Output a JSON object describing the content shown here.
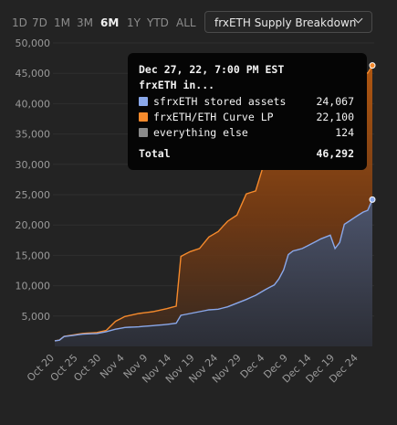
{
  "toolbar": {
    "ranges": [
      "1D",
      "7D",
      "1M",
      "3M",
      "6M",
      "1Y",
      "YTD",
      "ALL"
    ],
    "active_range": "6M",
    "dropdown_label": "frxETH Supply Breakdown"
  },
  "colors": {
    "background": "#232323",
    "sfrxeth": "#8aa8ea",
    "curve_lp": "#f58a2c",
    "everything_else": "#8a8a8a",
    "axis_text": "#9a9a9a",
    "grid": "#2f2f2f"
  },
  "tooltip": {
    "date": "Dec 27, 22, 7:00 PM EST",
    "subtitle": "frxETH in...",
    "rows": [
      {
        "name": "sfrxETH stored assets",
        "value": "24,067"
      },
      {
        "name": "frxETH/ETH Curve LP",
        "value": "22,100"
      },
      {
        "name": "everything else",
        "value": "124"
      }
    ],
    "total_label": "Total",
    "total_value": "46,292"
  },
  "chart_data": {
    "type": "area",
    "stacked": true,
    "ylim": [
      0,
      50000
    ],
    "y_ticks": [
      "5,000",
      "10,000",
      "15,000",
      "20,000",
      "25,000",
      "30,000",
      "35,000",
      "40,000",
      "45,000",
      "50,000"
    ],
    "x_ticks": [
      "Oct 20",
      "Oct 25",
      "Oct 30",
      "Nov 4",
      "Nov 9",
      "Nov 14",
      "Nov 19",
      "Nov 24",
      "Nov 29",
      "Dec 4",
      "Dec 9",
      "Dec 14",
      "Dec 19",
      "Dec 24"
    ],
    "x_start": "2022-10-20",
    "x_end": "2022-12-27",
    "series": [
      {
        "name": "sfrxETH stored assets",
        "points": [
          [
            "2022-10-20",
            800
          ],
          [
            "2022-10-21",
            900
          ],
          [
            "2022-10-22",
            1500
          ],
          [
            "2022-10-24",
            1700
          ],
          [
            "2022-10-26",
            1900
          ],
          [
            "2022-10-29",
            2000
          ],
          [
            "2022-10-31",
            2300
          ],
          [
            "2022-11-02",
            2700
          ],
          [
            "2022-11-04",
            3000
          ],
          [
            "2022-11-07",
            3100
          ],
          [
            "2022-11-10",
            3300
          ],
          [
            "2022-11-13",
            3500
          ],
          [
            "2022-11-15",
            3700
          ],
          [
            "2022-11-16",
            5000
          ],
          [
            "2022-11-18",
            5300
          ],
          [
            "2022-11-20",
            5600
          ],
          [
            "2022-11-22",
            5900
          ],
          [
            "2022-11-24",
            6000
          ],
          [
            "2022-11-26",
            6400
          ],
          [
            "2022-11-28",
            7000
          ],
          [
            "2022-11-30",
            7600
          ],
          [
            "2022-12-02",
            8300
          ],
          [
            "2022-12-04",
            9200
          ],
          [
            "2022-12-06",
            10000
          ],
          [
            "2022-12-07",
            11000
          ],
          [
            "2022-12-08",
            12500
          ],
          [
            "2022-12-09",
            15000
          ],
          [
            "2022-12-10",
            15600
          ],
          [
            "2022-12-12",
            16000
          ],
          [
            "2022-12-14",
            16800
          ],
          [
            "2022-12-16",
            17600
          ],
          [
            "2022-12-18",
            18200
          ],
          [
            "2022-12-19",
            16000
          ],
          [
            "2022-12-20",
            17000
          ],
          [
            "2022-12-21",
            20000
          ],
          [
            "2022-12-23",
            21000
          ],
          [
            "2022-12-25",
            22000
          ],
          [
            "2022-12-26",
            22300
          ],
          [
            "2022-12-27",
            24067
          ]
        ]
      },
      {
        "name": "frxETH/ETH Curve LP",
        "points": [
          [
            "2022-10-20",
            0
          ],
          [
            "2022-10-31",
            200
          ],
          [
            "2022-11-02",
            1300
          ],
          [
            "2022-11-04",
            1800
          ],
          [
            "2022-11-07",
            2200
          ],
          [
            "2022-11-10",
            2300
          ],
          [
            "2022-11-13",
            2600
          ],
          [
            "2022-11-15",
            2800
          ],
          [
            "2022-11-16",
            9700
          ],
          [
            "2022-11-18",
            10200
          ],
          [
            "2022-11-20",
            10400
          ],
          [
            "2022-11-22",
            12000
          ],
          [
            "2022-11-24",
            12800
          ],
          [
            "2022-11-26",
            14100
          ],
          [
            "2022-11-28",
            14500
          ],
          [
            "2022-11-30",
            17400
          ],
          [
            "2022-12-02",
            17200
          ],
          [
            "2022-12-04",
            21300
          ],
          [
            "2022-12-06",
            22500
          ],
          [
            "2022-12-07",
            26000
          ],
          [
            "2022-12-09",
            24700
          ],
          [
            "2022-12-12",
            26000
          ],
          [
            "2022-12-14",
            25700
          ],
          [
            "2022-12-16",
            25600
          ],
          [
            "2022-12-18",
            25900
          ],
          [
            "2022-12-19",
            28000
          ],
          [
            "2022-12-21",
            24500
          ],
          [
            "2022-12-23",
            23700
          ],
          [
            "2022-12-25",
            23100
          ],
          [
            "2022-12-27",
            22100
          ]
        ]
      },
      {
        "name": "everything else",
        "points": [
          [
            "2022-10-20",
            124
          ],
          [
            "2022-12-27",
            124
          ]
        ]
      }
    ],
    "grid": true,
    "legend": "tooltip"
  }
}
